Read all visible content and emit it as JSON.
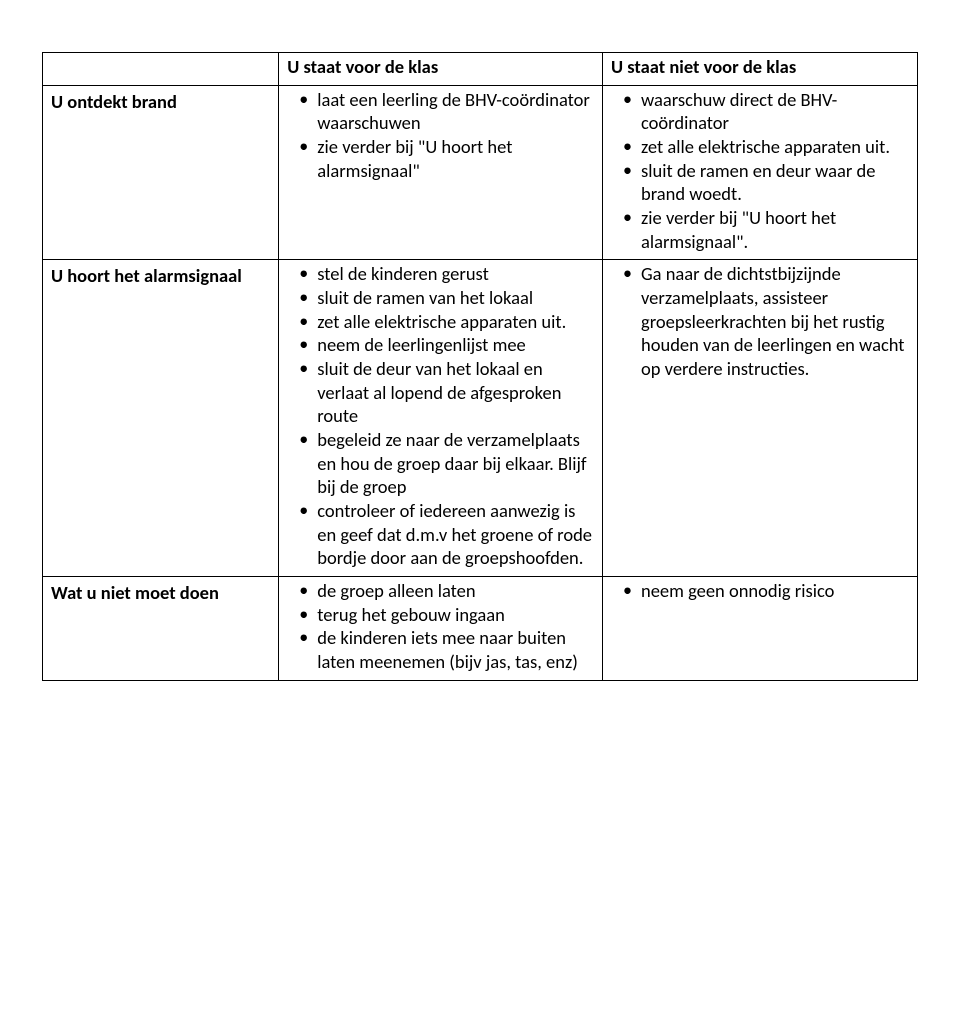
{
  "header": {
    "rowlabel": "",
    "col2": "U staat voor de klas",
    "col3": "U staat niet voor de klas"
  },
  "rows": [
    {
      "label": "U ontdekt brand",
      "col2": [
        "laat een leerling de BHV-coördinator waarschuwen",
        "zie verder bij \"U hoort het alarmsignaal\""
      ],
      "col3": [
        "waarschuw direct de BHV-coördinator",
        "zet alle elektrische apparaten uit.",
        "sluit de ramen en deur waar de brand woedt.",
        "zie verder bij \"U hoort het alarmsignaal\"."
      ]
    },
    {
      "label": "U hoort het alarmsignaal",
      "col2": [
        "stel de kinderen gerust",
        "sluit de ramen van het lokaal",
        "zet alle elektrische apparaten uit.",
        "neem de leerlingenlijst mee",
        "sluit de deur van het lokaal en verlaat al lopend de afgesproken route",
        "begeleid ze naar de verzamelplaats en hou de groep daar bij elkaar. Blijf bij de groep",
        "controleer of iedereen aanwezig is en geef dat d.m.v het groene of rode bordje door aan de groepshoofden."
      ],
      "col3": [
        "Ga naar de dichtstbijzijnde verzamelplaats, assisteer groepsleerkrachten bij het rustig houden van de leerlingen en wacht op verdere instructies."
      ]
    },
    {
      "label": "Wat u niet moet doen",
      "col2": [
        "de groep alleen laten",
        "terug het gebouw ingaan",
        "de kinderen iets mee naar buiten laten meenemen (bijv jas, tas, enz)"
      ],
      "col3": [
        "neem geen onnodig risico"
      ]
    }
  ]
}
